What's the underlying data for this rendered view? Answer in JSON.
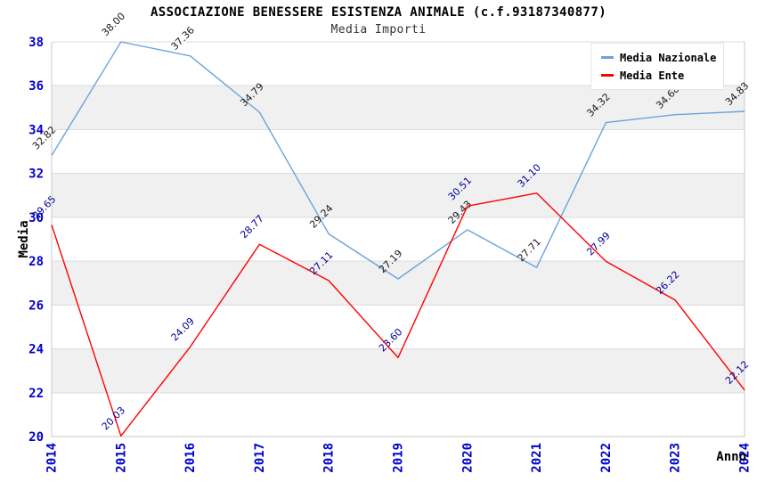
{
  "chart_data": {
    "type": "line",
    "title": "ASSOCIAZIONE BENESSERE ESISTENZA ANIMALE (c.f.93187340877)",
    "subtitle": "Media Importi",
    "xlabel": "Anno",
    "ylabel": "Media",
    "x": [
      "2014",
      "2015",
      "2016",
      "2017",
      "2018",
      "2019",
      "2020",
      "2021",
      "2022",
      "2023",
      "2024"
    ],
    "ylim": [
      20,
      38
    ],
    "ytick_step": 2,
    "grid": true,
    "band_pairs": [
      [
        22,
        24
      ],
      [
        26,
        28
      ],
      [
        30,
        32
      ],
      [
        34,
        36
      ]
    ],
    "legend_position": "top-right",
    "series": [
      {
        "name": "Media Nazionale",
        "color": "#6ba3dc",
        "label_color": "#1a1a1a",
        "values": [
          32.82,
          38.0,
          37.36,
          34.79,
          29.24,
          27.19,
          29.43,
          27.71,
          34.32,
          34.68,
          34.83
        ]
      },
      {
        "name": "Media Ente",
        "color": "#ff0000",
        "label_color": "#000099",
        "values": [
          29.65,
          20.03,
          24.09,
          28.77,
          27.11,
          23.6,
          30.51,
          31.1,
          27.99,
          26.22,
          22.12
        ]
      }
    ],
    "colors": {
      "band": "#f0f0f0",
      "grid": "#dcdcdc",
      "axis": "#c8c8c8",
      "tick_text": "#0000cc",
      "axis_title_text": "#000000",
      "series1_label_text": "#1a1a1a",
      "series2_label_text": "#000099"
    }
  }
}
